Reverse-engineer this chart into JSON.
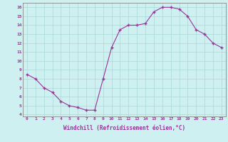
{
  "x": [
    0,
    1,
    2,
    3,
    4,
    5,
    6,
    7,
    8,
    9,
    10,
    11,
    12,
    13,
    14,
    15,
    16,
    17,
    18,
    19,
    20,
    21,
    22,
    23
  ],
  "y": [
    8.5,
    8.0,
    7.0,
    6.5,
    5.5,
    5.0,
    4.8,
    4.5,
    4.5,
    8.0,
    11.5,
    13.5,
    14.0,
    14.0,
    14.2,
    15.5,
    16.0,
    16.0,
    15.8,
    15.0,
    13.5,
    13.0,
    12.0,
    11.5
  ],
  "line_color": "#993399",
  "marker": "+",
  "marker_size": 3.5,
  "bg_color": "#cff0f0",
  "grid_color": "#aad8d8",
  "xlabel": "Windchill (Refroidissement éolien,°C)",
  "xlabel_color": "#993399",
  "xlim": [
    -0.5,
    23.5
  ],
  "ylim": [
    3.8,
    16.5
  ],
  "yticks": [
    4,
    5,
    6,
    7,
    8,
    9,
    10,
    11,
    12,
    13,
    14,
    15,
    16
  ],
  "xtick_labels": [
    "0",
    "1",
    "2",
    "3",
    "4",
    "5",
    "6",
    "7",
    "8",
    "9",
    "10",
    "11",
    "12",
    "13",
    "14",
    "15",
    "16",
    "17",
    "18",
    "19",
    "20",
    "21",
    "22",
    "23"
  ],
  "tick_color": "#993399",
  "axis_color": "#993399",
  "spine_color": "#888888"
}
